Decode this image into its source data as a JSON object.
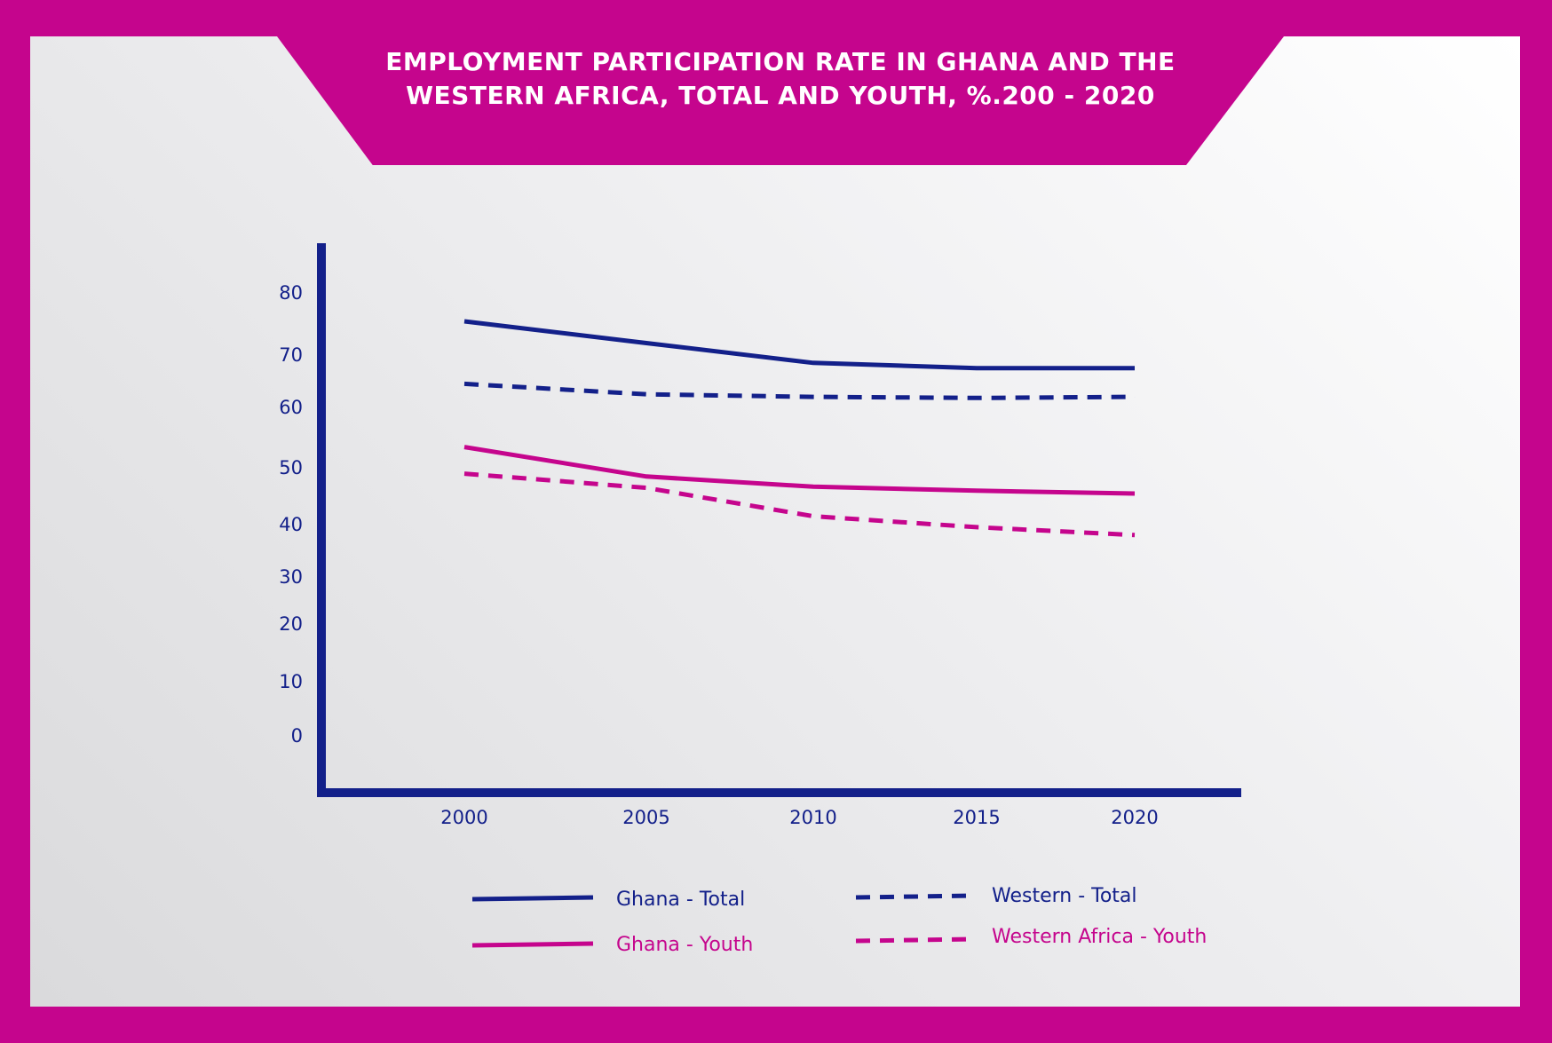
{
  "colors": {
    "background": "#C5058D",
    "panel": "#EEEEF0",
    "navy": "#13208A",
    "magenta": "#C5058D",
    "title_text": "#FFFFFF"
  },
  "chart_data": {
    "type": "line",
    "title": "EMPLOYMENT PARTICIPATION RATE IN GHANA AND THE\nWESTERN AFRICA, TOTAL AND YOUTH, %.200 - 2020",
    "xlabel": "",
    "ylabel": "",
    "categories": [
      "2000",
      "2005",
      "2010",
      "2015",
      "2020"
    ],
    "x": [
      2000,
      2005,
      2010,
      2015,
      2020
    ],
    "yticks": [
      0,
      10,
      20,
      30,
      40,
      50,
      60,
      70,
      80
    ],
    "ylim": [
      0,
      80
    ],
    "grid": false,
    "legend_position": "bottom",
    "series": [
      {
        "name": "Ghana - Total",
        "color": "#13208A",
        "dash": false,
        "values": [
          75,
          71.5,
          68,
          67,
          67
        ]
      },
      {
        "name": "Western - Total",
        "color": "#13208A",
        "dash": true,
        "values": [
          64,
          62,
          61.5,
          61.3,
          61.5
        ]
      },
      {
        "name": "Ghana - Youth",
        "color": "#C5058D",
        "dash": false,
        "values": [
          53,
          48,
          46.2,
          45.5,
          45
        ]
      },
      {
        "name": "Western Africa - Youth",
        "color": "#C5058D",
        "dash": true,
        "values": [
          48.5,
          46,
          41,
          39,
          37.5
        ]
      }
    ]
  }
}
